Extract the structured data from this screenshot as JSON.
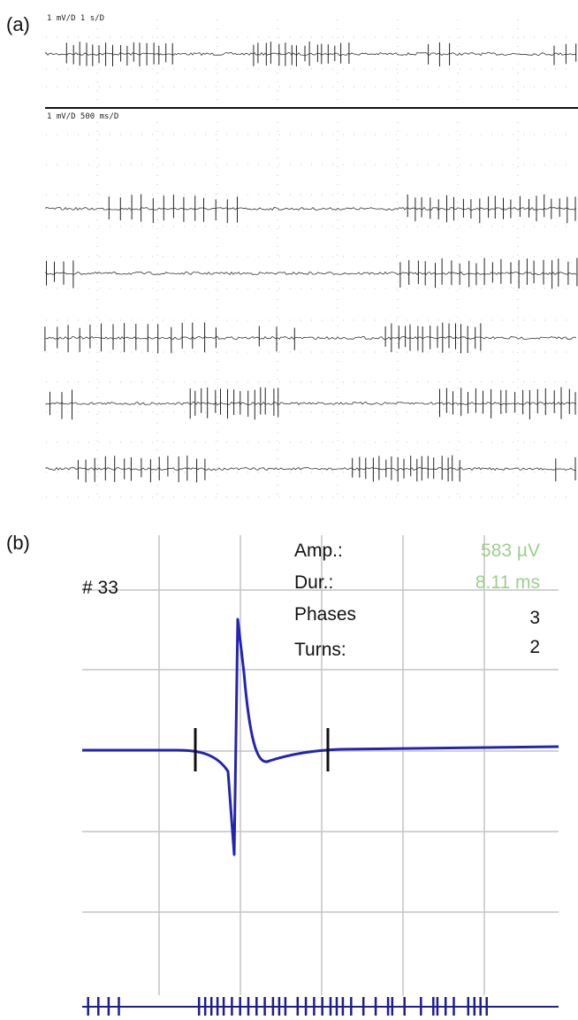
{
  "panels": {
    "a_label": "(a)",
    "b_label": "(b)"
  },
  "chart_data": [
    {
      "type": "line",
      "panel": "a",
      "scale_top": "1 mV/D 1 s/D",
      "scale_bottom": "1 mV/D 500 ms/D",
      "traces": [
        {
          "bursts": [
            [
              0.04,
              0.24,
              17
            ],
            [
              0.39,
              0.57,
              16
            ],
            [
              0.72,
              0.76,
              3
            ],
            [
              0.96,
              1.0,
              3
            ]
          ]
        },
        {
          "bursts": [
            [
              0.12,
              0.36,
              13
            ],
            [
              0.68,
              1.0,
              22
            ]
          ]
        },
        {
          "bursts": [
            [
              0.0,
              0.05,
              4
            ],
            [
              0.67,
              1.0,
              22
            ]
          ]
        },
        {
          "bursts": [
            [
              0.0,
              0.32,
              16
            ],
            [
              0.4,
              0.47,
              3
            ],
            [
              0.64,
              0.82,
              16
            ]
          ]
        },
        {
          "bursts": [
            [
              0.01,
              0.05,
              3
            ],
            [
              0.27,
              0.44,
              15
            ],
            [
              0.74,
              1.0,
              19
            ]
          ]
        },
        {
          "bursts": [
            [
              0.06,
              0.3,
              15
            ],
            [
              0.58,
              0.78,
              18
            ],
            [
              0.96,
              1.0,
              2
            ]
          ]
        }
      ]
    },
    {
      "type": "line",
      "panel": "b",
      "unit_label": "# 33",
      "readout": {
        "amp_label": "Amp.:",
        "amp_value": "583 µV",
        "dur_label": "Dur.:",
        "dur_value": "8.11 ms",
        "phases_label": "Phases",
        "phases_value": "3",
        "turns_label": "Turns:",
        "turns_value": "2"
      },
      "waveform_colors": [
        "#2323b4"
      ],
      "firing_pattern": [
        0.01,
        0.035,
        0.06,
        0.085,
        0.28,
        0.295,
        0.31,
        0.325,
        0.34,
        0.36,
        0.38,
        0.4,
        0.42,
        0.44,
        0.46,
        0.475,
        0.49,
        0.52,
        0.54,
        0.56,
        0.58,
        0.6,
        0.615,
        0.63,
        0.65,
        0.68,
        0.71,
        0.74,
        0.75,
        0.78,
        0.82,
        0.85,
        0.86,
        0.88,
        0.9,
        0.935,
        0.95,
        0.965,
        0.98
      ]
    }
  ]
}
